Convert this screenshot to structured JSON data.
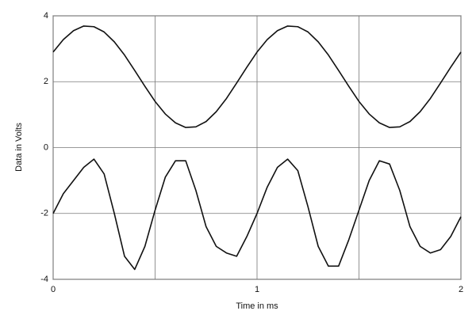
{
  "chart_data": {
    "type": "line",
    "x_label": "Time in ms",
    "y_label": "Data in Volts",
    "x": [
      0,
      0.05,
      0.1,
      0.15,
      0.2,
      0.25,
      0.3,
      0.35,
      0.4,
      0.45,
      0.5,
      0.55,
      0.6,
      0.65,
      0.7,
      0.75,
      0.8,
      0.85,
      0.9,
      0.95,
      1,
      1.05,
      1.1,
      1.15,
      1.2,
      1.25,
      1.3,
      1.35,
      1.4,
      1.45,
      1.5,
      1.55,
      1.6,
      1.65,
      1.7,
      1.75,
      1.8,
      1.85,
      1.9,
      1.95,
      2
    ],
    "series": [
      {
        "color": "#111111",
        "values": [
          2.9,
          3.28,
          3.55,
          3.69,
          3.67,
          3.51,
          3.21,
          2.81,
          2.34,
          1.86,
          1.4,
          1.02,
          0.75,
          0.61,
          0.63,
          0.79,
          1.09,
          1.49,
          1.96,
          2.44,
          2.9,
          3.28,
          3.55,
          3.69,
          3.67,
          3.51,
          3.21,
          2.81,
          2.34,
          1.86,
          1.4,
          1.02,
          0.75,
          0.61,
          0.63,
          0.79,
          1.09,
          1.49,
          1.96,
          2.44,
          2.9
        ]
      },
      {
        "color": "#111111",
        "values": [
          -2.0,
          -1.4,
          -1.0,
          -0.6,
          -0.35,
          -0.8,
          -2.0,
          -3.3,
          -3.7,
          -3.0,
          -1.9,
          -0.9,
          -0.4,
          -0.4,
          -1.3,
          -2.4,
          -3.0,
          -3.2,
          -3.3,
          -2.7,
          -2.0,
          -1.2,
          -0.6,
          -0.35,
          -0.7,
          -1.8,
          -3.0,
          -3.6,
          -3.6,
          -2.8,
          -1.9,
          -1.0,
          -0.4,
          -0.5,
          -1.3,
          -2.4,
          -3.0,
          -3.2,
          -3.1,
          -2.7,
          -2.1
        ]
      }
    ],
    "xlim": [
      0,
      2
    ],
    "xticks": [
      0,
      1,
      2
    ],
    "x_minor_grid": [
      0.5,
      1.5
    ],
    "ylim": [
      -4,
      4
    ],
    "yticks": [
      -4,
      -2,
      0,
      2,
      4
    ],
    "grid": true
  }
}
